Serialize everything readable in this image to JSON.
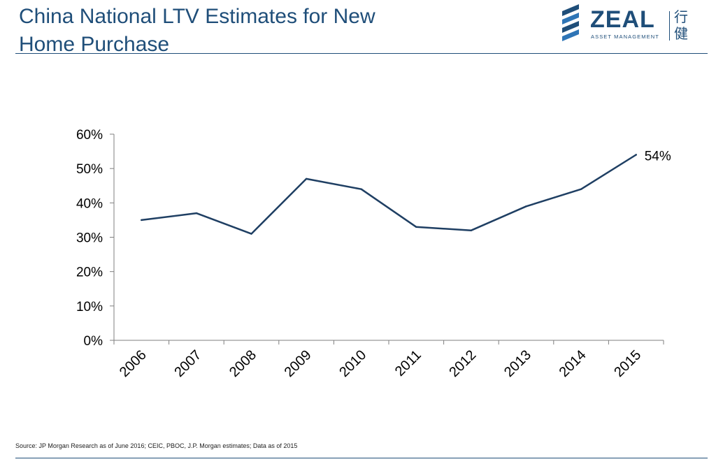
{
  "title_lines": [
    "China National LTV Estimates for New",
    "Home Purchase"
  ],
  "logo": {
    "name": "ZEAL",
    "subtitle": "ASSET MANAGEMENT",
    "chinese": [
      "行",
      "健"
    ],
    "brand_color": "#1f4e79",
    "accent_color": "#2e75b6"
  },
  "source": "Source: JP Morgan Research as of June 2016; CEIC, PBOC, J.P. Morgan estimates; Data as of 2015",
  "colors": {
    "line": "#1f3f63",
    "axis": "#7f7f7f",
    "title": "#1f4e79"
  },
  "chart_data": {
    "type": "line",
    "categories": [
      "2006",
      "2007",
      "2008",
      "2009",
      "2010",
      "2011",
      "2012",
      "2013",
      "2014",
      "2015"
    ],
    "values": [
      35,
      37,
      31,
      47,
      44,
      33,
      32,
      39,
      44,
      54
    ],
    "y_ticks": [
      "0%",
      "10%",
      "20%",
      "30%",
      "40%",
      "50%",
      "60%"
    ],
    "ylim": [
      0,
      60
    ],
    "grid": false,
    "annotation": {
      "index": 9,
      "text": "54%"
    }
  }
}
